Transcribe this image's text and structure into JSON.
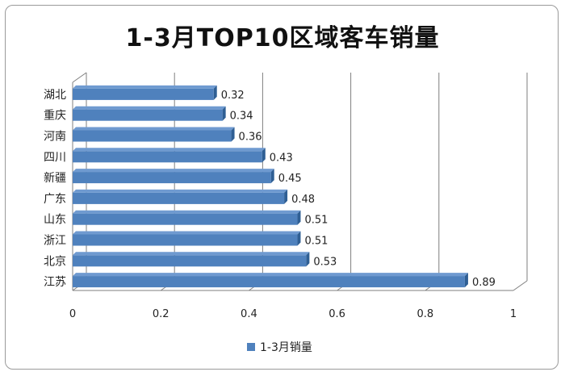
{
  "colors": {
    "bar": "#4f81bd",
    "bar_top": "#2f5f94",
    "bar_side": "#6f9ad0",
    "grid": "#7f7f7f",
    "text": "#222222"
  },
  "chart_data": {
    "type": "bar",
    "orientation": "horizontal",
    "title": "1-3月TOP10区域客车销量",
    "categories": [
      "湖北",
      "重庆",
      "河南",
      "四川",
      "新疆",
      "广东",
      "山东",
      "浙江",
      "北京",
      "江苏"
    ],
    "series": [
      {
        "name": "1-3月销量",
        "values": [
          0.32,
          0.34,
          0.36,
          0.43,
          0.45,
          0.48,
          0.51,
          0.51,
          0.53,
          0.89
        ]
      }
    ],
    "data_labels": [
      "0.32",
      "0.34",
      "0.36",
      "0.43",
      "0.45",
      "0.48",
      "0.51",
      "0.51",
      "0.53",
      "0.89"
    ],
    "x_ticks": [
      "0",
      "0.2",
      "0.4",
      "0.6",
      "0.8",
      "1"
    ],
    "xlim": [
      0,
      1
    ],
    "xlabel": "",
    "ylabel": "",
    "grid": true,
    "legend": "bottom"
  }
}
